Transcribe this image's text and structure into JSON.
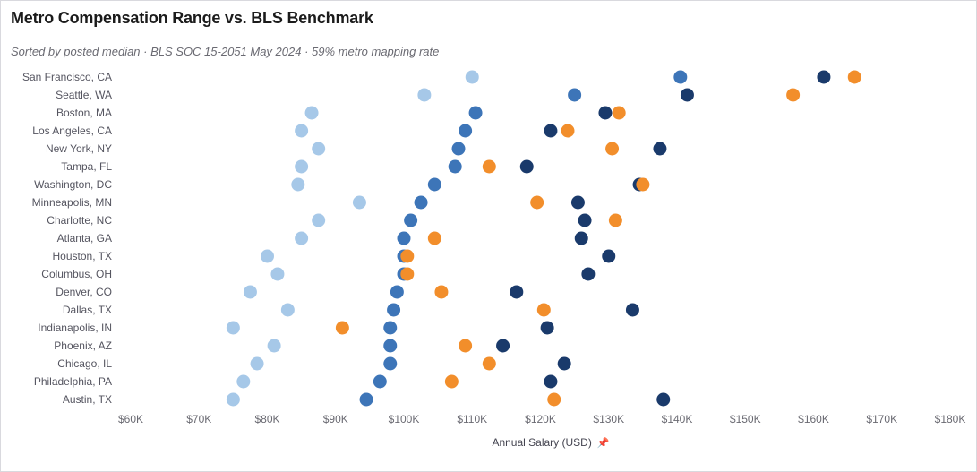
{
  "title": "Metro Compensation Range vs. BLS Benchmark",
  "subtitle": "Sorted by posted median · BLS SOC 15-2051 May 2024 · 59% metro mapping rate",
  "chart_data": {
    "type": "scatter",
    "title": "Metro Compensation Range vs. BLS Benchmark",
    "xlabel": "Annual Salary (USD)",
    "ylabel": "",
    "xlim": [
      60000,
      180000
    ],
    "x_ticks": [
      60000,
      70000,
      80000,
      90000,
      100000,
      110000,
      120000,
      130000,
      140000,
      150000,
      160000,
      170000,
      180000
    ],
    "x_tick_labels": [
      "$60K",
      "$70K",
      "$80K",
      "$90K",
      "$100K",
      "$110K",
      "$120K",
      "$130K",
      "$140K",
      "$150K",
      "$160K",
      "$170K",
      "$180K"
    ],
    "grid": false,
    "legend": "none",
    "categories": [
      "San Francisco, CA",
      "Seattle, WA",
      "Boston, MA",
      "Los Angeles, CA",
      "New York, NY",
      "Tampa, FL",
      "Washington, DC",
      "Minneapolis, MN",
      "Charlotte, NC",
      "Atlanta, GA",
      "Houston, TX",
      "Columbus, OH",
      "Denver, CO",
      "Dallas, TX",
      "Indianapolis, IN",
      "Phoenix, AZ",
      "Chicago, IL",
      "Philadelphia, PA",
      "Austin, TX"
    ],
    "series": [
      {
        "color": "#a6c8e8",
        "values": [
          110000,
          103000,
          86500,
          85000,
          87500,
          85000,
          84500,
          93500,
          87500,
          85000,
          80000,
          81500,
          77500,
          83000,
          75000,
          81000,
          78500,
          76500,
          75000
        ]
      },
      {
        "color": "#3d75b8",
        "values": [
          140500,
          125000,
          110500,
          109000,
          108000,
          107500,
          104500,
          102500,
          101000,
          100000,
          100000,
          100000,
          99000,
          98500,
          98000,
          98000,
          98000,
          96500,
          94500
        ]
      },
      {
        "color": "#1a3a6b",
        "values": [
          161500,
          141500,
          129500,
          121500,
          137500,
          118000,
          134500,
          125500,
          126500,
          126000,
          130000,
          127000,
          116500,
          133500,
          121000,
          114500,
          123500,
          121500,
          138000
        ]
      },
      {
        "color": "#f28e2b",
        "values": [
          166000,
          157000,
          131500,
          124000,
          130500,
          112500,
          135000,
          119500,
          131000,
          104500,
          100500,
          100500,
          105500,
          120500,
          91000,
          109000,
          112500,
          107000,
          122000
        ]
      }
    ]
  },
  "axis_title": "Annual Salary (USD)",
  "pin_icon": "pin-icon"
}
